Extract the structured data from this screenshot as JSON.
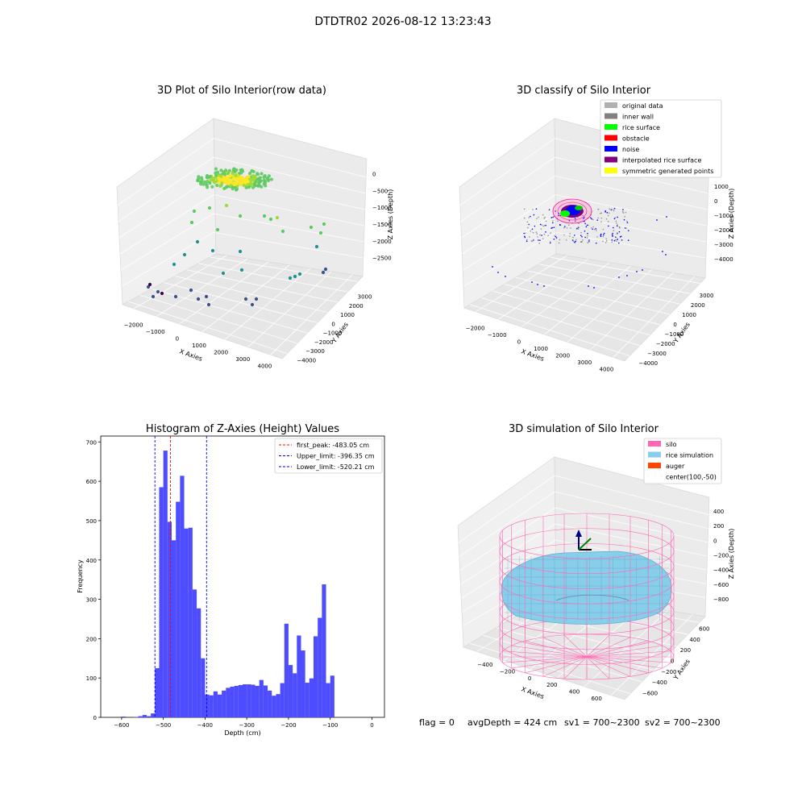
{
  "suptitle": "DTDTR02 2026-08-12 13:23:43",
  "status_line": {
    "flag": "flag = 0",
    "avg": "avgDepth = 424 cm",
    "sv1": "sv1 = 700~2300",
    "sv2": "sv2 = 700~2300"
  },
  "chart_data": [
    {
      "type": "scatter",
      "title": "3D Plot of Silo Interior(row data)",
      "xlabel": "X Axies",
      "ylabel": "Y Axies",
      "zlabel": "Z Axies (Depth)",
      "x_ticks": [
        "−2000",
        "−1000",
        "0",
        "1000",
        "2000",
        "3000",
        "4000"
      ],
      "y_ticks": [
        "3000",
        "2000",
        "1000",
        "0",
        "−1000",
        "−2000",
        "−3000",
        "−4000"
      ],
      "z_ticks": [
        "0",
        "−500",
        "−1000",
        "−1500",
        "−2000",
        "−2500"
      ],
      "colormap": "viridis",
      "description_points": "dense yellow cluster near top center (~0 to -500), scattered green/teal points down to purple near -2500"
    },
    {
      "type": "scatter",
      "title": "3D classify of Silo Interior",
      "xlabel": "X Axies",
      "ylabel": "Y Axies",
      "zlabel": "Z Axies (Depth)",
      "x_ticks": [
        "−2000",
        "−1000",
        "0",
        "1000",
        "2000",
        "3000",
        "4000"
      ],
      "y_ticks": [
        "3000",
        "2000",
        "1000",
        "0",
        "−1000",
        "−2000",
        "−3000",
        "−4000"
      ],
      "z_ticks": [
        "1000",
        "0",
        "−1000",
        "−2000",
        "−3000",
        "−4000"
      ],
      "legend": [
        {
          "label": "original data",
          "color": "#b0b0b0"
        },
        {
          "label": "inner wall",
          "color": "#808080"
        },
        {
          "label": "rice surface",
          "color": "#00ff00"
        },
        {
          "label": "obstacle",
          "color": "#ff0000"
        },
        {
          "label": "noise",
          "color": "#0000ff"
        },
        {
          "label": "interpolated rice surface",
          "color": "#800080"
        },
        {
          "label": "symmetric generated points",
          "color": "#ffff00"
        }
      ],
      "legend_position": "top-right"
    },
    {
      "type": "bar",
      "title": "Histogram of Z-Axies (Height) Values",
      "xlabel": "Depth (cm)",
      "ylabel": "Frequency",
      "xlim": [
        -650,
        30
      ],
      "ylim": [
        0,
        715
      ],
      "x_ticks": [
        -600,
        -500,
        -400,
        -300,
        -200,
        -100,
        0
      ],
      "x_tick_labels": [
        "−600",
        "−500",
        "−400",
        "−300",
        "−200",
        "−100",
        "0"
      ],
      "y_ticks": [
        0,
        100,
        200,
        300,
        400,
        500,
        600,
        700
      ],
      "bin_width": 10,
      "bins": [
        {
          "x": -590,
          "v": 2
        },
        {
          "x": -560,
          "v": 1
        },
        {
          "x": -550,
          "v": 3
        },
        {
          "x": -540,
          "v": 6
        },
        {
          "x": -530,
          "v": 3
        },
        {
          "x": -520,
          "v": 10
        },
        {
          "x": -510,
          "v": 125
        },
        {
          "x": -500,
          "v": 585
        },
        {
          "x": -490,
          "v": 678
        },
        {
          "x": -480,
          "v": 497
        },
        {
          "x": -470,
          "v": 450
        },
        {
          "x": -460,
          "v": 548
        },
        {
          "x": -450,
          "v": 614
        },
        {
          "x": -440,
          "v": 480
        },
        {
          "x": -430,
          "v": 482
        },
        {
          "x": -420,
          "v": 325
        },
        {
          "x": -410,
          "v": 277
        },
        {
          "x": -400,
          "v": 150
        },
        {
          "x": -390,
          "v": 58
        },
        {
          "x": -380,
          "v": 56
        },
        {
          "x": -370,
          "v": 66
        },
        {
          "x": -360,
          "v": 58
        },
        {
          "x": -350,
          "v": 68
        },
        {
          "x": -340,
          "v": 75
        },
        {
          "x": -330,
          "v": 78
        },
        {
          "x": -320,
          "v": 80
        },
        {
          "x": -310,
          "v": 82
        },
        {
          "x": -300,
          "v": 84
        },
        {
          "x": -290,
          "v": 84
        },
        {
          "x": -280,
          "v": 83
        },
        {
          "x": -270,
          "v": 80
        },
        {
          "x": -260,
          "v": 95
        },
        {
          "x": -250,
          "v": 81
        },
        {
          "x": -240,
          "v": 68
        },
        {
          "x": -230,
          "v": 55
        },
        {
          "x": -220,
          "v": 59
        },
        {
          "x": -210,
          "v": 87
        },
        {
          "x": -200,
          "v": 238
        },
        {
          "x": -190,
          "v": 133
        },
        {
          "x": -180,
          "v": 112
        },
        {
          "x": -170,
          "v": 208
        },
        {
          "x": -160,
          "v": 170
        },
        {
          "x": -150,
          "v": 88
        },
        {
          "x": -140,
          "v": 99
        },
        {
          "x": -130,
          "v": 206
        },
        {
          "x": -120,
          "v": 253
        },
        {
          "x": -110,
          "v": 338
        },
        {
          "x": -100,
          "v": 87
        },
        {
          "x": -90,
          "v": 106
        }
      ],
      "bar_color": "#4d4dff",
      "vlines": [
        {
          "label": "first_peak: -483.05 cm",
          "x": -483.05,
          "color": "#ff0000"
        },
        {
          "label": "Upper_limit: -396.35 cm",
          "x": -396.35,
          "color": "#0000ff"
        },
        {
          "label": "Lower_limit: -520.21 cm",
          "x": -520.21,
          "color": "#0000ff"
        }
      ],
      "legend_position": "top-right"
    },
    {
      "type": "surface",
      "title": "3D simulation of Silo Interior",
      "xlabel": "X Axies",
      "ylabel": "Y Axies",
      "zlabel": "Z Axies (Depth)",
      "x_ticks": [
        "−400",
        "−200",
        "0",
        "200",
        "400",
        "600"
      ],
      "y_ticks": [
        "600",
        "400",
        "200",
        "0",
        "−200",
        "−400",
        "−600"
      ],
      "z_ticks": [
        "400",
        "200",
        "0",
        "−200",
        "−400",
        "−600",
        "−800"
      ],
      "legend": [
        {
          "label": "silo",
          "color": "#ff69b4"
        },
        {
          "label": "rice simulation",
          "color": "#87ceeb"
        },
        {
          "label": "auger",
          "color": "#ff4500"
        },
        {
          "label": "center(100,-50)",
          "color": ""
        }
      ],
      "legend_position": "top-right"
    }
  ]
}
